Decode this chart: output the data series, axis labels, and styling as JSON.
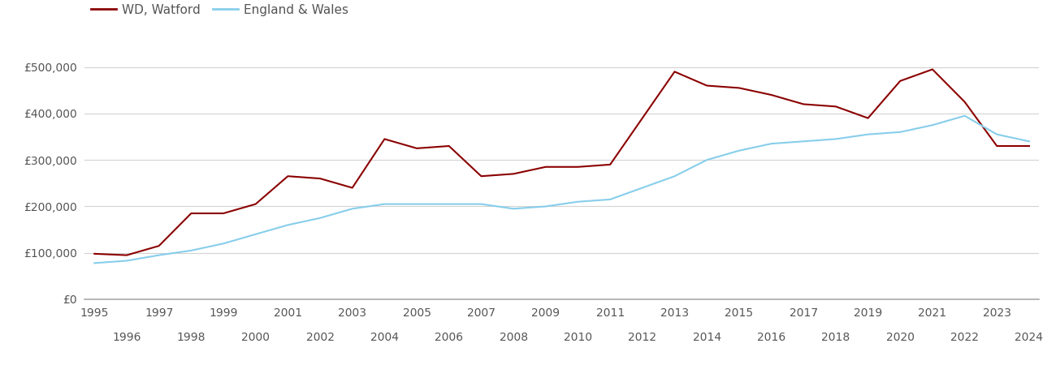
{
  "watford_years": [
    1995,
    1996,
    1997,
    1998,
    1999,
    2000,
    2001,
    2002,
    2003,
    2004,
    2005,
    2006,
    2007,
    2008,
    2009,
    2010,
    2011,
    2012,
    2013,
    2014,
    2015,
    2016,
    2017,
    2018,
    2019,
    2020,
    2021,
    2022,
    2023,
    2024
  ],
  "watford_values": [
    98000,
    95000,
    115000,
    185000,
    185000,
    205000,
    265000,
    260000,
    240000,
    345000,
    325000,
    330000,
    265000,
    270000,
    285000,
    285000,
    290000,
    390000,
    490000,
    460000,
    455000,
    440000,
    420000,
    415000,
    390000,
    470000,
    495000,
    425000,
    330000,
    330000
  ],
  "england_years": [
    1995,
    1996,
    1997,
    1998,
    1999,
    2000,
    2001,
    2002,
    2003,
    2004,
    2005,
    2006,
    2007,
    2008,
    2009,
    2010,
    2011,
    2012,
    2013,
    2014,
    2015,
    2016,
    2017,
    2018,
    2019,
    2020,
    2021,
    2022,
    2023,
    2024
  ],
  "england_values": [
    78000,
    83000,
    95000,
    105000,
    120000,
    140000,
    160000,
    175000,
    195000,
    205000,
    205000,
    205000,
    205000,
    195000,
    200000,
    210000,
    215000,
    240000,
    265000,
    300000,
    320000,
    335000,
    340000,
    345000,
    355000,
    360000,
    375000,
    395000,
    355000,
    340000
  ],
  "watford_color": "#8b0000",
  "england_color": "#87ceeb",
  "watford_label": "WD, Watford",
  "england_label": "England & Wales",
  "ylim": [
    0,
    550000
  ],
  "yticks": [
    0,
    100000,
    200000,
    300000,
    400000,
    500000
  ],
  "xlim_min": 1994.7,
  "xlim_max": 2024.3,
  "background_color": "#ffffff",
  "grid_color": "#d3d3d3",
  "line_width": 1.5,
  "legend_fontsize": 11,
  "tick_fontsize": 10,
  "tick_color": "#555555"
}
